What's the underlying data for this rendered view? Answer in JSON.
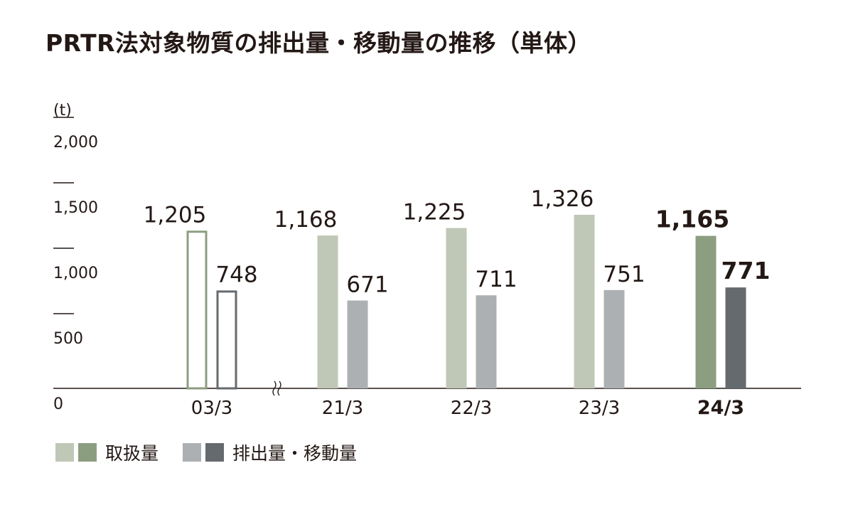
{
  "title": "PRTR法対象物質の排出量・移動量の推移（単体）",
  "chart_data": {
    "type": "bar",
    "unit_label": "(t)",
    "categories": [
      "03/3",
      "21/3",
      "22/3",
      "23/3",
      "24/3"
    ],
    "highlight_category": "24/3",
    "axis_break_after": "03/3",
    "y_ticks": [
      0,
      500,
      1000,
      1500,
      2000
    ],
    "y_tick_labels": [
      "0",
      "500",
      "1,000",
      "1,500",
      "2,000"
    ],
    "ylim": [
      0,
      2000
    ],
    "series": [
      {
        "name": "取扱量",
        "values": [
          1205,
          1168,
          1225,
          1326,
          1165
        ],
        "value_labels": [
          "1,205",
          "1,168",
          "1,225",
          "1,326",
          "1,165"
        ],
        "color": "#bfc8b6",
        "highlight_color": "#8c9e80",
        "outline_color": "#8c9e80"
      },
      {
        "name": "排出量・移動量",
        "values": [
          748,
          671,
          711,
          751,
          771
        ],
        "value_labels": [
          "748",
          "671",
          "711",
          "751",
          "771"
        ],
        "color": "#adb0b3",
        "highlight_color": "#656a6e",
        "outline_color": "#656a6e"
      }
    ],
    "outlined_categories": [
      "03/3"
    ],
    "legend_placement": "bottom-left"
  },
  "legend": {
    "items": [
      {
        "label": "取扱量",
        "colors": [
          "#bfc8b6",
          "#8c9e80"
        ]
      },
      {
        "label": "排出量・移動量",
        "colors": [
          "#adb0b3",
          "#656a6e"
        ]
      }
    ]
  }
}
